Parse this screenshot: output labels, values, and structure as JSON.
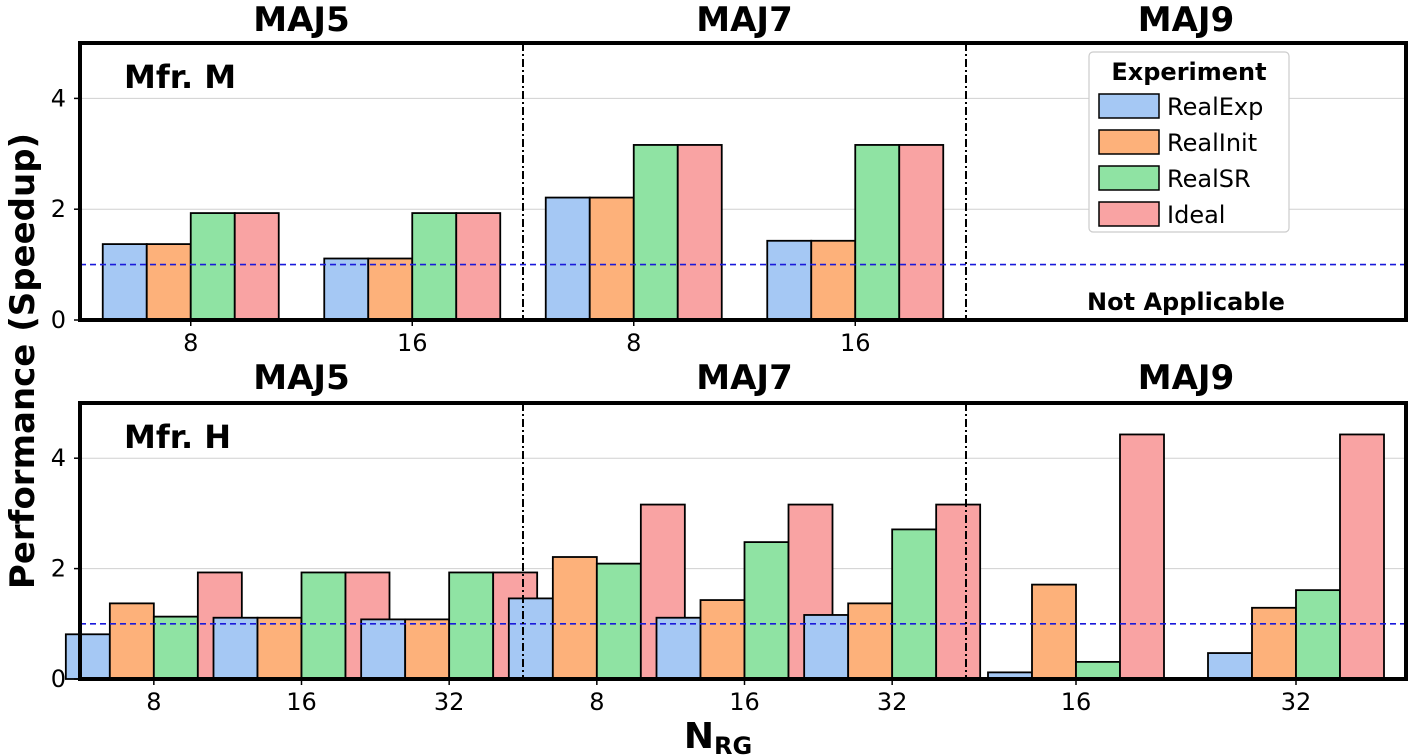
{
  "chart_data": [
    {
      "type": "bar",
      "panel_label": "Mfr. M",
      "ylabel": "Performance (Speedup)",
      "xlabel": "",
      "ylim": [
        0,
        5
      ],
      "yticks": [
        0,
        2,
        4
      ],
      "grid": true,
      "baseline": 1,
      "legend": {
        "title": "Experiment",
        "placement": "top-right",
        "entries": [
          "RealExp",
          "RealInit",
          "RealSR",
          "Ideal"
        ]
      },
      "series_colors": [
        "#a5c8f4",
        "#fdb17a",
        "#8fe3a3",
        "#f9a3a3"
      ],
      "groups": [
        {
          "title": "MAJ5",
          "categories": [
            "8",
            "16"
          ],
          "series": [
            {
              "name": "RealExp",
              "values": [
                1.37,
                1.11
              ]
            },
            {
              "name": "RealInit",
              "values": [
                1.37,
                1.11
              ]
            },
            {
              "name": "RealSR",
              "values": [
                1.93,
                1.93
              ]
            },
            {
              "name": "Ideal",
              "values": [
                1.93,
                1.93
              ]
            }
          ]
        },
        {
          "title": "MAJ7",
          "categories": [
            "8",
            "16"
          ],
          "series": [
            {
              "name": "RealExp",
              "values": [
                2.21,
                1.43
              ]
            },
            {
              "name": "RealInit",
              "values": [
                2.21,
                1.43
              ]
            },
            {
              "name": "RealSR",
              "values": [
                3.16,
                3.16
              ]
            },
            {
              "name": "Ideal",
              "values": [
                3.16,
                3.16
              ]
            }
          ]
        },
        {
          "title": "MAJ9",
          "categories": [],
          "series": [],
          "note": "Not Applicable"
        }
      ]
    },
    {
      "type": "bar",
      "panel_label": "Mfr. H",
      "ylabel": "Performance (Speedup)",
      "xlabel": "N",
      "xlabel_sub": "RG",
      "ylim": [
        0,
        5
      ],
      "yticks": [
        0,
        2,
        4
      ],
      "grid": true,
      "baseline": 1,
      "series_colors": [
        "#a5c8f4",
        "#fdb17a",
        "#8fe3a3",
        "#f9a3a3"
      ],
      "groups": [
        {
          "title": "MAJ5",
          "categories": [
            "8",
            "16",
            "32"
          ],
          "series": [
            {
              "name": "RealExp",
              "values": [
                0.81,
                1.11,
                1.08
              ]
            },
            {
              "name": "RealInit",
              "values": [
                1.37,
                1.11,
                1.08
              ]
            },
            {
              "name": "RealSR",
              "values": [
                1.13,
                1.93,
                1.93
              ]
            },
            {
              "name": "Ideal",
              "values": [
                1.93,
                1.93,
                1.93
              ]
            }
          ]
        },
        {
          "title": "MAJ7",
          "categories": [
            "8",
            "16",
            "32"
          ],
          "series": [
            {
              "name": "RealExp",
              "values": [
                1.46,
                1.11,
                1.16
              ]
            },
            {
              "name": "RealInit",
              "values": [
                2.21,
                1.43,
                1.37
              ]
            },
            {
              "name": "RealSR",
              "values": [
                2.09,
                2.48,
                2.71
              ]
            },
            {
              "name": "Ideal",
              "values": [
                3.16,
                3.16,
                3.16
              ]
            }
          ]
        },
        {
          "title": "MAJ9",
          "categories": [
            "16",
            "32"
          ],
          "series": [
            {
              "name": "RealExp",
              "values": [
                0.12,
                0.47
              ]
            },
            {
              "name": "RealInit",
              "values": [
                1.71,
                1.29
              ]
            },
            {
              "name": "RealSR",
              "values": [
                0.31,
                1.61
              ]
            },
            {
              "name": "Ideal",
              "values": [
                4.43,
                4.43
              ]
            }
          ]
        }
      ]
    }
  ]
}
